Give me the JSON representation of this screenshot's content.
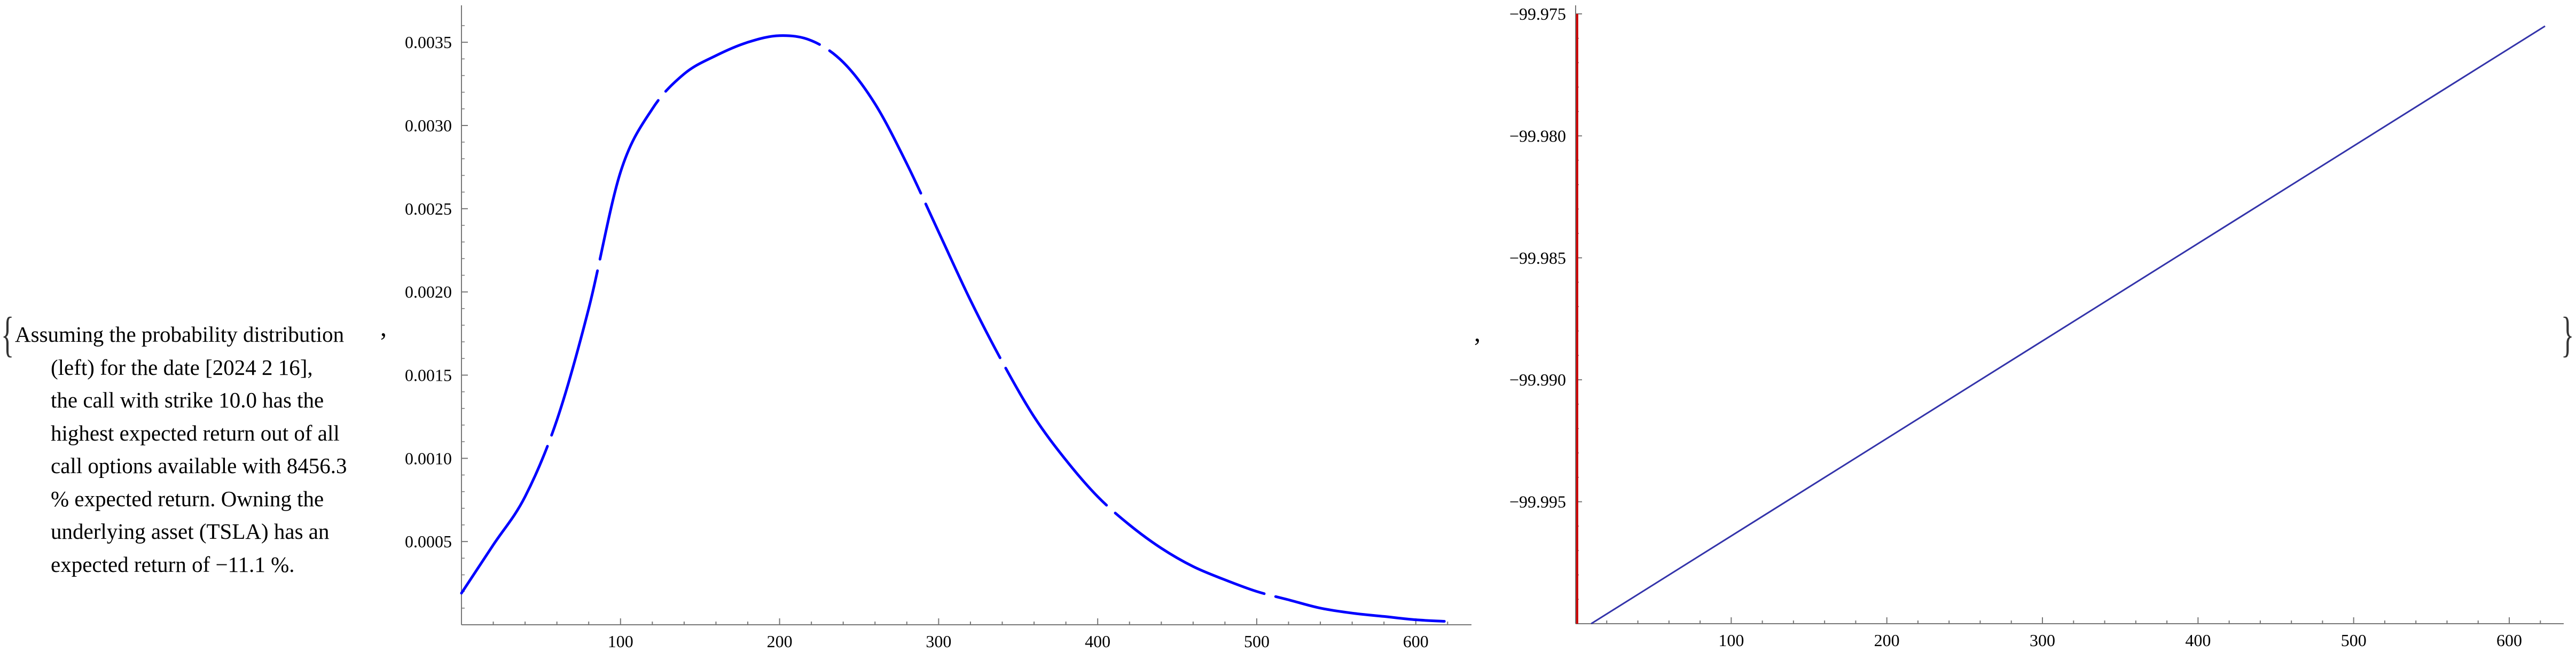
{
  "punctuation": {
    "open_brace": "{",
    "close_brace": "}",
    "comma": ","
  },
  "text_lines": [
    "Assuming the probability distribution",
    "(left) for the date [2024 2 16],",
    "the call with strike 10.0 has the",
    "highest expected return out of all",
    "call options available with 8456.3",
    "% expected return. Owning the",
    "underlying asset (TSLA) has an",
    "expected return of −11.1 %."
  ],
  "colors": {
    "curve_left": "#0000ff",
    "line_right": "#3333aa",
    "vertical_right": "#cc0000",
    "axis": "#777777"
  },
  "chart_data": [
    {
      "type": "line",
      "title": "",
      "xlabel": "",
      "ylabel": "",
      "xlim": [
        0,
        635
      ],
      "ylim": [
        0,
        0.0036
      ],
      "xticks": [
        100,
        200,
        300,
        400,
        500,
        600
      ],
      "yticks": [
        0.0005,
        0.001,
        0.0015,
        0.002,
        0.0025,
        0.003,
        0.0035
      ],
      "ytick_labels": [
        "0.0005",
        "0.0010",
        "0.0015",
        "0.0020",
        "0.0025",
        "0.0030",
        "0.0035"
      ],
      "line_style": "dashed",
      "series": [
        {
          "x": [
            0,
            20,
            40,
            60,
            80,
            100,
            120,
            140,
            160,
            180,
            200,
            220,
            240,
            260,
            280,
            300,
            320,
            340,
            360,
            380,
            400,
            420,
            440,
            460,
            480,
            500,
            520,
            540,
            560,
            580,
            600,
            620
          ],
          "y": [
            0.00019,
            0.00048,
            0.00077,
            0.00123,
            0.0019,
            0.00272,
            0.0031,
            0.00331,
            0.00342,
            0.0035,
            0.00354,
            0.00351,
            0.00338,
            0.00313,
            0.00277,
            0.00236,
            0.00195,
            0.00158,
            0.00125,
            0.00099,
            0.00077,
            0.0006,
            0.00046,
            0.00035,
            0.00027,
            0.0002,
            0.00015,
            0.0001,
            7e-05,
            5e-05,
            3e-05,
            2e-05
          ]
        }
      ]
    },
    {
      "type": "line",
      "title": "",
      "xlabel": "",
      "ylabel": "",
      "xlim": [
        0,
        635
      ],
      "ylim": [
        -100,
        -99.975
      ],
      "xticks": [
        100,
        200,
        300,
        400,
        500,
        600
      ],
      "yticks": [
        -99.995,
        -99.99,
        -99.985,
        -99.98,
        -99.975
      ],
      "ytick_labels": [
        "−99.995",
        "−99.990",
        "−99.985",
        "−99.980",
        "−99.975"
      ],
      "series": [
        {
          "x": [
            10,
            623
          ],
          "y": [
            -100,
            -99.9755
          ]
        },
        {
          "x": [
            1,
            1
          ],
          "y": [
            -100,
            -99.975
          ]
        }
      ]
    }
  ]
}
